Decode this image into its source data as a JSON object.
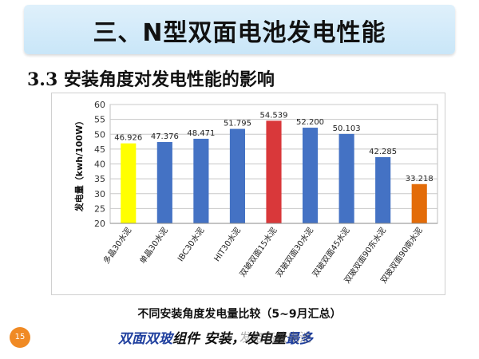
{
  "header": {
    "title": "三、N型双面电池发电性能"
  },
  "section": {
    "subtitle": "3.3 安装角度对发电性能的影响"
  },
  "chart_data": {
    "type": "bar",
    "title": "",
    "xlabel": "",
    "ylabel": "发电量（kwh/100W）",
    "ylim": [
      20,
      60
    ],
    "yticks": [
      20,
      25,
      30,
      35,
      40,
      45,
      50,
      55,
      60
    ],
    "grid": true,
    "categories": [
      "多晶30水泥",
      "单晶30水泥",
      "IBC30水泥",
      "HIT30水泥",
      "双玻双面15水泥",
      "双玻双面30水泥",
      "双玻双面45水泥",
      "双玻双面90东水泥",
      "双玻双面90南水泥"
    ],
    "values": [
      46.926,
      47.376,
      48.471,
      51.795,
      54.539,
      52.2,
      50.103,
      42.285,
      33.218
    ],
    "value_labels": [
      "46.926",
      "47.376",
      "48.471",
      "51.795",
      "54.539",
      "52.200",
      "50.103",
      "42.285",
      "33.218"
    ],
    "colors": [
      "#ffff00",
      "#4472c4",
      "#4472c4",
      "#4472c4",
      "#d9383a",
      "#4472c4",
      "#4472c4",
      "#4472c4",
      "#e36c09"
    ]
  },
  "caption": {
    "text": "不同安装角度发电量比较（5~9月汇总）"
  },
  "footer": {
    "page_number": "15",
    "note_blue": "双面双玻",
    "note_black_a": "组件",
    "note_black_b": "安装，发电量",
    "note_blue_b": "最多",
    "watermark": "发电高效电池"
  }
}
